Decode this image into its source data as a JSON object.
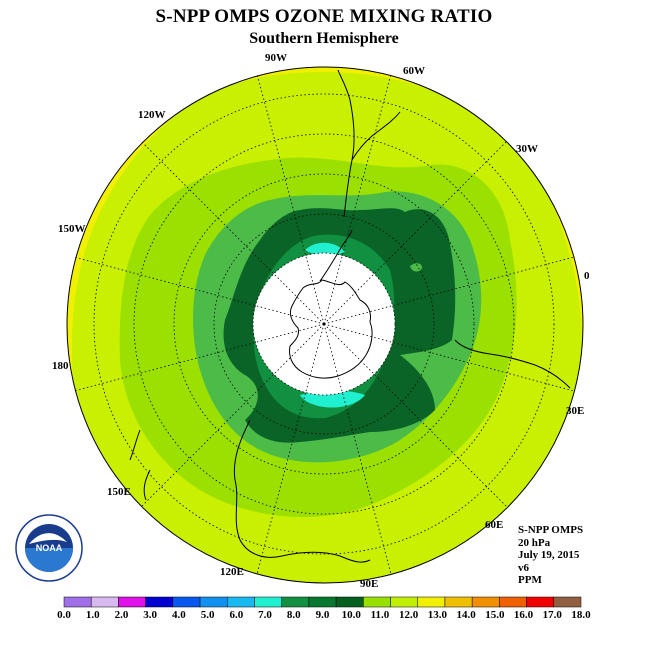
{
  "title": "S-NPP OMPS OZONE MIXING RATIO",
  "subtitle": "Southern Hemisphere",
  "longitude_labels": [
    "90W",
    "60W",
    "30W",
    "0",
    "30E",
    "60E",
    "90E",
    "120E",
    "150E",
    "180",
    "150W",
    "120W"
  ],
  "info": {
    "instrument": "S-NPP OMPS",
    "pressure": "20 hPa",
    "date": "July 19, 2015",
    "version": "v6",
    "units": "PPM"
  },
  "logo": {
    "text": "NOAA",
    "ring_text": "NATIONAL OCEANIC AND ATMOSPHERIC ADMINISTRATION · U.S. DEPARTMENT OF COMMERCE"
  },
  "colorbar": {
    "labels": [
      "0.0",
      "1.0",
      "2.0",
      "3.0",
      "4.0",
      "5.0",
      "6.0",
      "7.0",
      "8.0",
      "9.0",
      "10.0",
      "11.0",
      "12.0",
      "13.0",
      "14.0",
      "15.0",
      "16.0",
      "17.0",
      "18.0"
    ],
    "colors": [
      "#a070e8",
      "#d8b8f0",
      "#e010e8",
      "#0000d0",
      "#0858f0",
      "#1090f0",
      "#18b8f0",
      "#20f0d0",
      "#109040",
      "#087830",
      "#056020",
      "#98e000",
      "#c0f000",
      "#f0f000",
      "#f0c000",
      "#f09000",
      "#f06000",
      "#f00000",
      "#906040"
    ]
  },
  "map_colors": {
    "bg_outer": "#f0f000",
    "level_12_13": "#c8f000",
    "level_11_12": "#9be000",
    "level_10_11": "#4cbb48",
    "level_9_10": "#0a6428",
    "level_8_9": "#109040",
    "level_7_8": "#20f0d0",
    "no_data": "#ffffff"
  }
}
